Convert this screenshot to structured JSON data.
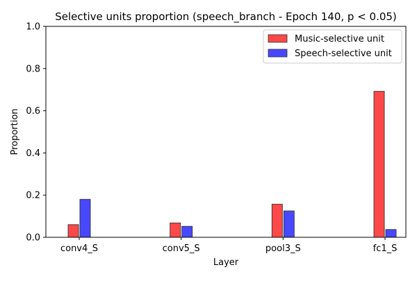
{
  "chart_data": {
    "type": "bar",
    "title": "Selective units proportion (speech_branch - Epoch 140, p < 0.05)",
    "xlabel": "Layer",
    "ylabel": "Proportion",
    "ylim": [
      0,
      1.0
    ],
    "yticks": [
      "0.0",
      "0.2",
      "0.4",
      "0.6",
      "0.8",
      "1.0"
    ],
    "categories": [
      "conv4_S",
      "conv5_S",
      "pool3_S",
      "fc1_S"
    ],
    "series": [
      {
        "name": "Music-selective unit",
        "color": "#ff4848",
        "values": [
          0.06,
          0.068,
          0.157,
          0.692
        ]
      },
      {
        "name": "Speech-selective unit",
        "color": "#4848ff",
        "values": [
          0.18,
          0.052,
          0.125,
          0.037
        ]
      }
    ],
    "legend_position": "top-right",
    "grid": false
  }
}
